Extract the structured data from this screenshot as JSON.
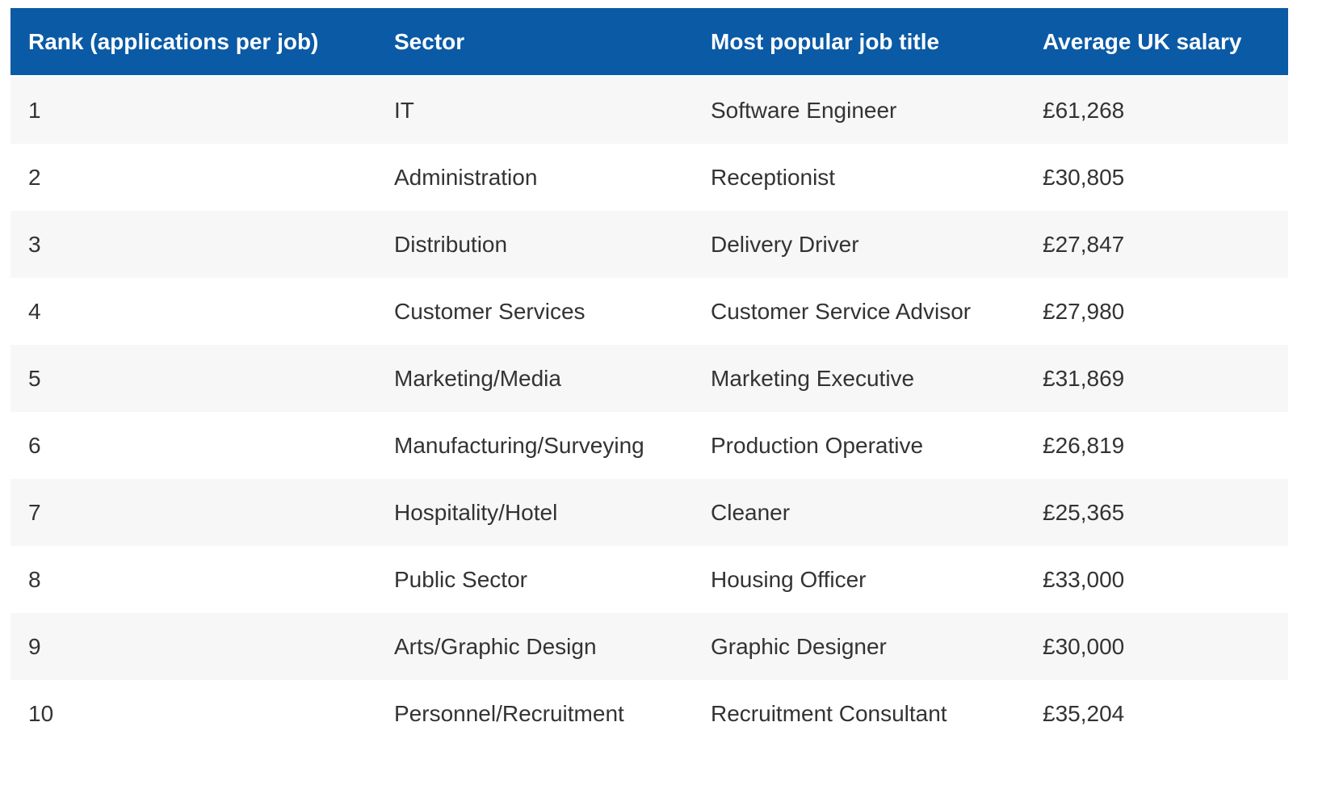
{
  "colors": {
    "header_bg": "#0a5aa6",
    "header_text": "#ffffff",
    "row_stripe_bg": "#f7f7f7",
    "row_bg": "#ffffff",
    "cell_text": "#333333",
    "page_bg": "#ffffff"
  },
  "chart_data": {
    "type": "table",
    "title": "",
    "columns": [
      "Rank (applications per job)",
      "Sector",
      "Most popular job title",
      "Average UK salary"
    ],
    "rows": [
      [
        "1",
        "IT",
        "Software Engineer",
        "£61,268"
      ],
      [
        "2",
        "Administration",
        "Receptionist",
        "£30,805"
      ],
      [
        "3",
        "Distribution",
        "Delivery Driver",
        "£27,847"
      ],
      [
        "4",
        "Customer Services",
        "Customer Service Advisor",
        "£27,980"
      ],
      [
        "5",
        "Marketing/Media",
        "Marketing Executive",
        "£31,869"
      ],
      [
        "6",
        "Manufacturing/Surveying",
        "Production Operative",
        "£26,819"
      ],
      [
        "7",
        "Hospitality/Hotel",
        "Cleaner",
        "£25,365"
      ],
      [
        "8",
        "Public Sector",
        "Housing Officer",
        "£33,000"
      ],
      [
        "9",
        "Arts/Graphic Design",
        "Graphic Designer",
        "£30,000"
      ],
      [
        "10",
        "Personnel/Recruitment",
        "Recruitment Consultant",
        "£35,204"
      ]
    ],
    "layout": {
      "header_row": true,
      "zebra_striping": true,
      "grid": false
    }
  }
}
